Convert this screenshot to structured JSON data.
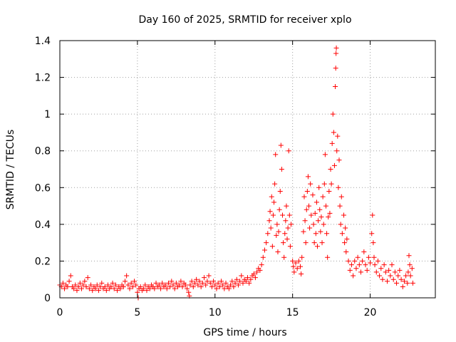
{
  "chart_data": {
    "type": "scatter",
    "title": "Day 160 of 2025, SRMTID for receiver xplo",
    "xlabel": "GPS time / hours",
    "ylabel": "SRMTID / TECUs",
    "xlim": [
      0,
      24.2
    ],
    "ylim": [
      0,
      1.4
    ],
    "xticks": [
      0,
      5,
      10,
      15,
      20
    ],
    "yticks": [
      0,
      0.2,
      0.4,
      0.6,
      0.8,
      1,
      1.2,
      1.4
    ],
    "xtick_labels": [
      "0",
      "5",
      "10",
      "15",
      "20"
    ],
    "ytick_labels": [
      "0",
      "0.2",
      "0.4",
      "0.6",
      "0.8",
      "1",
      "1.2",
      "1.4"
    ],
    "grid": true,
    "marker": "+",
    "color": "#ff0000",
    "series": [
      {
        "name": "SRMTID",
        "points": [
          [
            0.0,
            0.07
          ],
          [
            0.1,
            0.06
          ],
          [
            0.2,
            0.08
          ],
          [
            0.3,
            0.05
          ],
          [
            0.4,
            0.07
          ],
          [
            0.5,
            0.06
          ],
          [
            0.6,
            0.09
          ],
          [
            0.7,
            0.12
          ],
          [
            0.8,
            0.06
          ],
          [
            0.9,
            0.05
          ],
          [
            1.0,
            0.07
          ],
          [
            1.1,
            0.04
          ],
          [
            1.2,
            0.06
          ],
          [
            1.3,
            0.08
          ],
          [
            1.4,
            0.05
          ],
          [
            1.5,
            0.07
          ],
          [
            1.6,
            0.09
          ],
          [
            1.7,
            0.06
          ],
          [
            1.8,
            0.11
          ],
          [
            1.9,
            0.05
          ],
          [
            2.0,
            0.07
          ],
          [
            2.1,
            0.04
          ],
          [
            2.2,
            0.06
          ],
          [
            2.3,
            0.05
          ],
          [
            2.4,
            0.07
          ],
          [
            2.5,
            0.04
          ],
          [
            2.6,
            0.06
          ],
          [
            2.7,
            0.08
          ],
          [
            2.8,
            0.05
          ],
          [
            2.9,
            0.06
          ],
          [
            3.0,
            0.04
          ],
          [
            3.1,
            0.07
          ],
          [
            3.2,
            0.05
          ],
          [
            3.3,
            0.06
          ],
          [
            3.4,
            0.08
          ],
          [
            3.5,
            0.05
          ],
          [
            3.6,
            0.07
          ],
          [
            3.7,
            0.04
          ],
          [
            3.8,
            0.06
          ],
          [
            3.9,
            0.05
          ],
          [
            4.0,
            0.07
          ],
          [
            4.1,
            0.06
          ],
          [
            4.2,
            0.09
          ],
          [
            4.3,
            0.12
          ],
          [
            4.4,
            0.07
          ],
          [
            4.5,
            0.05
          ],
          [
            4.6,
            0.08
          ],
          [
            4.7,
            0.06
          ],
          [
            4.8,
            0.09
          ],
          [
            4.9,
            0.07
          ],
          [
            5.0,
            0.03
          ],
          [
            5.05,
            0.0
          ],
          [
            5.1,
            0.05
          ],
          [
            5.2,
            0.06
          ],
          [
            5.3,
            0.04
          ],
          [
            5.4,
            0.05
          ],
          [
            5.5,
            0.07
          ],
          [
            5.6,
            0.04
          ],
          [
            5.7,
            0.06
          ],
          [
            5.8,
            0.05
          ],
          [
            5.9,
            0.07
          ],
          [
            6.0,
            0.06
          ],
          [
            6.1,
            0.05
          ],
          [
            6.2,
            0.08
          ],
          [
            6.3,
            0.06
          ],
          [
            6.4,
            0.07
          ],
          [
            6.5,
            0.05
          ],
          [
            6.6,
            0.08
          ],
          [
            6.7,
            0.06
          ],
          [
            6.8,
            0.07
          ],
          [
            6.9,
            0.05
          ],
          [
            7.0,
            0.08
          ],
          [
            7.1,
            0.06
          ],
          [
            7.2,
            0.09
          ],
          [
            7.3,
            0.07
          ],
          [
            7.4,
            0.05
          ],
          [
            7.5,
            0.08
          ],
          [
            7.6,
            0.06
          ],
          [
            7.7,
            0.07
          ],
          [
            7.8,
            0.09
          ],
          [
            7.9,
            0.06
          ],
          [
            8.0,
            0.08
          ],
          [
            8.1,
            0.07
          ],
          [
            8.2,
            0.05
          ],
          [
            8.3,
            0.03
          ],
          [
            8.35,
            0.01
          ],
          [
            8.4,
            0.07
          ],
          [
            8.5,
            0.09
          ],
          [
            8.6,
            0.06
          ],
          [
            8.7,
            0.08
          ],
          [
            8.8,
            0.1
          ],
          [
            8.9,
            0.07
          ],
          [
            9.0,
            0.09
          ],
          [
            9.1,
            0.06
          ],
          [
            9.2,
            0.08
          ],
          [
            9.3,
            0.11
          ],
          [
            9.4,
            0.07
          ],
          [
            9.5,
            0.09
          ],
          [
            9.6,
            0.12
          ],
          [
            9.7,
            0.08
          ],
          [
            9.8,
            0.06
          ],
          [
            9.9,
            0.09
          ],
          [
            10.0,
            0.07
          ],
          [
            10.1,
            0.05
          ],
          [
            10.2,
            0.08
          ],
          [
            10.3,
            0.06
          ],
          [
            10.4,
            0.09
          ],
          [
            10.5,
            0.07
          ],
          [
            10.6,
            0.05
          ],
          [
            10.7,
            0.08
          ],
          [
            10.8,
            0.06
          ],
          [
            10.9,
            0.05
          ],
          [
            11.0,
            0.07
          ],
          [
            11.1,
            0.09
          ],
          [
            11.2,
            0.06
          ],
          [
            11.3,
            0.08
          ],
          [
            11.4,
            0.1
          ],
          [
            11.5,
            0.07
          ],
          [
            11.6,
            0.09
          ],
          [
            11.7,
            0.12
          ],
          [
            11.8,
            0.08
          ],
          [
            11.9,
            0.1
          ],
          [
            12.0,
            0.09
          ],
          [
            12.1,
            0.11
          ],
          [
            12.2,
            0.08
          ],
          [
            12.3,
            0.1
          ],
          [
            12.4,
            0.12
          ],
          [
            12.5,
            0.13
          ],
          [
            12.6,
            0.11
          ],
          [
            12.7,
            0.14
          ],
          [
            12.8,
            0.16
          ],
          [
            12.9,
            0.15
          ],
          [
            13.0,
            0.18
          ],
          [
            13.1,
            0.22
          ],
          [
            13.2,
            0.26
          ],
          [
            13.3,
            0.3
          ],
          [
            13.4,
            0.35
          ],
          [
            13.5,
            0.42
          ],
          [
            13.55,
            0.47
          ],
          [
            13.6,
            0.38
          ],
          [
            13.65,
            0.55
          ],
          [
            13.7,
            0.28
          ],
          [
            13.75,
            0.45
          ],
          [
            13.8,
            0.52
          ],
          [
            13.85,
            0.62
          ],
          [
            13.9,
            0.78
          ],
          [
            13.95,
            0.34
          ],
          [
            14.0,
            0.4
          ],
          [
            14.05,
            0.25
          ],
          [
            14.1,
            0.36
          ],
          [
            14.15,
            0.48
          ],
          [
            14.2,
            0.58
          ],
          [
            14.25,
            0.83
          ],
          [
            14.3,
            0.7
          ],
          [
            14.35,
            0.45
          ],
          [
            14.4,
            0.3
          ],
          [
            14.45,
            0.22
          ],
          [
            14.5,
            0.35
          ],
          [
            14.55,
            0.42
          ],
          [
            14.6,
            0.5
          ],
          [
            14.65,
            0.32
          ],
          [
            14.7,
            0.38
          ],
          [
            14.75,
            0.8
          ],
          [
            14.8,
            0.45
          ],
          [
            14.85,
            0.28
          ],
          [
            14.9,
            0.4
          ],
          [
            15.0,
            0.2
          ],
          [
            15.05,
            0.17
          ],
          [
            15.1,
            0.14
          ],
          [
            15.2,
            0.19
          ],
          [
            15.3,
            0.16
          ],
          [
            15.4,
            0.2
          ],
          [
            15.5,
            0.17
          ],
          [
            15.55,
            0.13
          ],
          [
            15.6,
            0.22
          ],
          [
            15.7,
            0.36
          ],
          [
            15.75,
            0.55
          ],
          [
            15.8,
            0.42
          ],
          [
            15.85,
            0.3
          ],
          [
            15.9,
            0.48
          ],
          [
            15.95,
            0.58
          ],
          [
            16.0,
            0.66
          ],
          [
            16.05,
            0.5
          ],
          [
            16.1,
            0.38
          ],
          [
            16.15,
            0.62
          ],
          [
            16.2,
            0.45
          ],
          [
            16.3,
            0.56
          ],
          [
            16.35,
            0.4
          ],
          [
            16.4,
            0.3
          ],
          [
            16.45,
            0.46
          ],
          [
            16.5,
            0.35
          ],
          [
            16.55,
            0.52
          ],
          [
            16.6,
            0.28
          ],
          [
            16.65,
            0.42
          ],
          [
            16.7,
            0.6
          ],
          [
            16.75,
            0.48
          ],
          [
            16.8,
            0.36
          ],
          [
            16.85,
            0.44
          ],
          [
            16.9,
            0.3
          ],
          [
            16.95,
            0.55
          ],
          [
            17.0,
            0.4
          ],
          [
            17.05,
            0.62
          ],
          [
            17.1,
            0.78
          ],
          [
            17.15,
            0.5
          ],
          [
            17.2,
            0.35
          ],
          [
            17.25,
            0.22
          ],
          [
            17.3,
            0.44
          ],
          [
            17.35,
            0.58
          ],
          [
            17.4,
            0.46
          ],
          [
            17.45,
            0.7
          ],
          [
            17.5,
            0.62
          ],
          [
            17.55,
            0.84
          ],
          [
            17.6,
            1.0
          ],
          [
            17.65,
            0.9
          ],
          [
            17.7,
            0.72
          ],
          [
            17.75,
            1.15
          ],
          [
            17.78,
            1.25
          ],
          [
            17.8,
            1.33
          ],
          [
            17.82,
            1.36
          ],
          [
            17.85,
            0.8
          ],
          [
            17.9,
            0.88
          ],
          [
            17.95,
            0.6
          ],
          [
            18.0,
            0.75
          ],
          [
            18.05,
            0.5
          ],
          [
            18.1,
            0.4
          ],
          [
            18.15,
            0.55
          ],
          [
            18.2,
            0.35
          ],
          [
            18.3,
            0.45
          ],
          [
            18.35,
            0.3
          ],
          [
            18.4,
            0.38
          ],
          [
            18.45,
            0.25
          ],
          [
            18.5,
            0.32
          ],
          [
            18.6,
            0.2
          ],
          [
            18.7,
            0.15
          ],
          [
            18.8,
            0.18
          ],
          [
            18.9,
            0.12
          ],
          [
            19.0,
            0.2
          ],
          [
            19.1,
            0.16
          ],
          [
            19.2,
            0.22
          ],
          [
            19.3,
            0.18
          ],
          [
            19.4,
            0.14
          ],
          [
            19.5,
            0.2
          ],
          [
            19.6,
            0.25
          ],
          [
            19.7,
            0.18
          ],
          [
            19.8,
            0.15
          ],
          [
            19.9,
            0.22
          ],
          [
            20.0,
            0.19
          ],
          [
            20.1,
            0.35
          ],
          [
            20.15,
            0.45
          ],
          [
            20.2,
            0.3
          ],
          [
            20.25,
            0.22
          ],
          [
            20.3,
            0.18
          ],
          [
            20.4,
            0.14
          ],
          [
            20.5,
            0.2
          ],
          [
            20.6,
            0.12
          ],
          [
            20.7,
            0.16
          ],
          [
            20.8,
            0.1
          ],
          [
            20.9,
            0.18
          ],
          [
            21.0,
            0.14
          ],
          [
            21.1,
            0.09
          ],
          [
            21.2,
            0.15
          ],
          [
            21.3,
            0.12
          ],
          [
            21.4,
            0.18
          ],
          [
            21.5,
            0.1
          ],
          [
            21.6,
            0.14
          ],
          [
            21.7,
            0.08
          ],
          [
            21.8,
            0.12
          ],
          [
            21.9,
            0.15
          ],
          [
            22.0,
            0.1
          ],
          [
            22.1,
            0.06
          ],
          [
            22.2,
            0.09
          ],
          [
            22.3,
            0.12
          ],
          [
            22.4,
            0.08
          ],
          [
            22.45,
            0.14
          ],
          [
            22.5,
            0.23
          ],
          [
            22.55,
            0.18
          ],
          [
            22.6,
            0.12
          ],
          [
            22.7,
            0.16
          ],
          [
            22.75,
            0.08
          ]
        ]
      }
    ]
  }
}
